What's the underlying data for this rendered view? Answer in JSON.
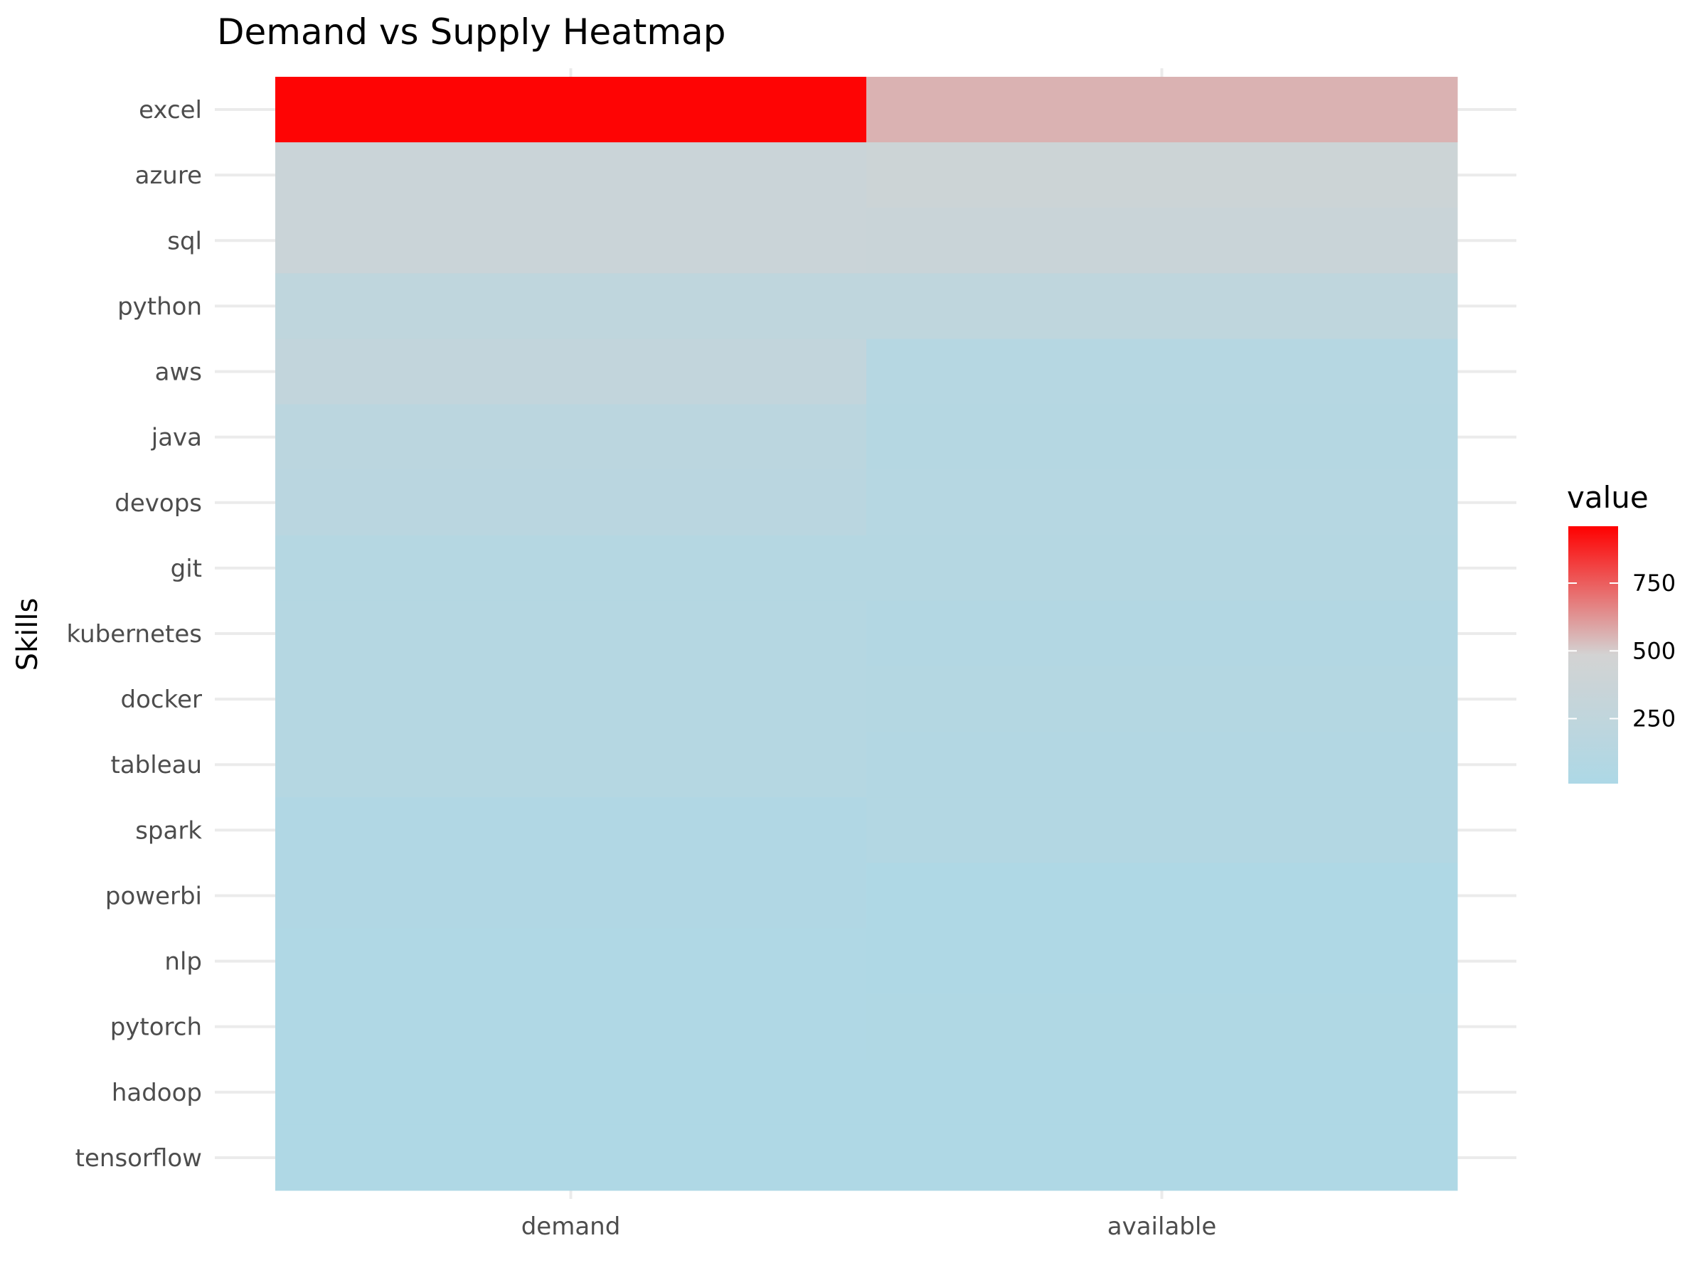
{
  "chart_data": {
    "type": "heatmap",
    "title": "Demand vs Supply Heatmap",
    "xlabel": "",
    "ylabel": "Skills",
    "x_categories": [
      "demand",
      "available"
    ],
    "y_categories": [
      "excel",
      "azure",
      "sql",
      "python",
      "aws",
      "java",
      "devops",
      "git",
      "kubernetes",
      "docker",
      "tableau",
      "spark",
      "powerbi",
      "nlp",
      "pytorch",
      "hadoop",
      "tensorflow"
    ],
    "values": {
      "demand": [
        950,
        370,
        370,
        230,
        270,
        190,
        170,
        110,
        110,
        110,
        110,
        60,
        60,
        45,
        45,
        35,
        35
      ],
      "available": [
        560,
        400,
        360,
        230,
        120,
        110,
        120,
        110,
        90,
        100,
        80,
        80,
        30,
        40,
        50,
        40,
        30
      ]
    },
    "colorbar": {
      "title": "value",
      "low_color": "#add8e6",
      "mid_color": "#d3d3d3",
      "high_color": "#ff0000",
      "range": [
        10,
        960
      ],
      "ticks": [
        250,
        500,
        750
      ]
    },
    "grid": true,
    "legend_position": "right"
  }
}
